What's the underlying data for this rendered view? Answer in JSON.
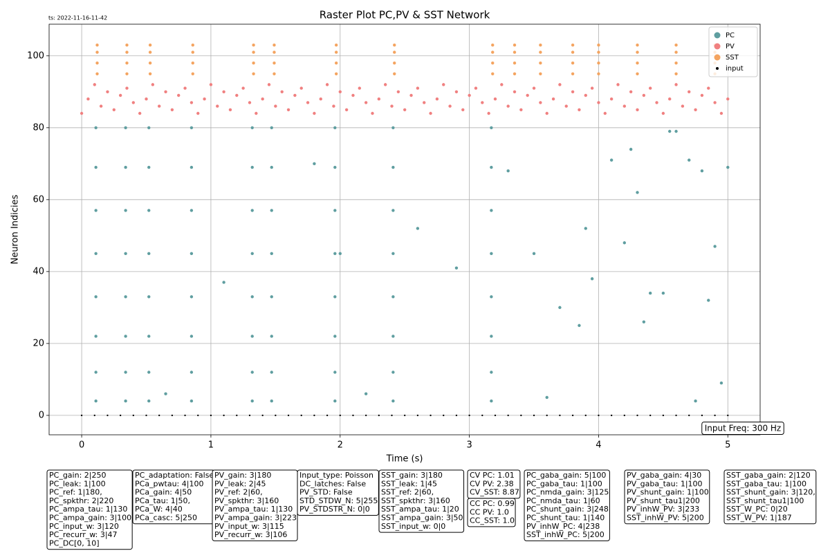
{
  "chart_data": {
    "type": "scatter",
    "timestamp": "ts: 2022-11-16-11-42",
    "title": "Raster Plot PC,PV & SST Network",
    "xlabel": "Time (s)",
    "ylabel": "Neuron Indicies",
    "annotation": "Input Freq: 300 Hz",
    "xlim": [
      -0.252,
      5.25
    ],
    "ylim": [
      -5.4,
      108.8
    ],
    "xticks": [
      0,
      1,
      2,
      3,
      4,
      5
    ],
    "yticks": [
      0,
      20,
      40,
      60,
      80,
      100
    ],
    "grid": true,
    "legend": "upper right",
    "series": [
      {
        "name": "PC",
        "color": "#5f9ea0",
        "x": [
          0.11,
          0.11,
          0.11,
          0.11,
          0.11,
          0.11,
          0.11,
          0.11,
          0.34,
          0.34,
          0.34,
          0.34,
          0.34,
          0.34,
          0.34,
          0.34,
          0.52,
          0.52,
          0.52,
          0.52,
          0.52,
          0.52,
          0.52,
          0.52,
          0.85,
          0.85,
          0.85,
          0.85,
          0.85,
          0.85,
          0.85,
          0.85,
          1.32,
          1.32,
          1.32,
          1.32,
          1.32,
          1.32,
          1.32,
          1.32,
          1.47,
          1.47,
          1.47,
          1.47,
          1.47,
          1.47,
          1.47,
          1.47,
          1.96,
          1.96,
          1.96,
          1.96,
          1.96,
          1.96,
          1.96,
          1.96,
          2.41,
          2.41,
          2.41,
          2.41,
          2.41,
          2.41,
          2.41,
          2.41,
          3.17,
          3.17,
          3.17,
          3.17,
          3.17,
          3.17,
          3.17,
          3.17,
          3.3,
          3.5,
          3.6,
          3.7,
          3.85,
          3.9,
          3.95,
          4.1,
          4.2,
          4.3,
          4.4,
          4.5,
          4.6,
          4.7,
          4.8,
          4.9,
          5.0,
          4.55,
          4.25,
          4.85,
          4.95,
          4.75,
          4.35,
          2.2,
          2.6,
          2.9,
          1.8,
          1.1,
          0.65,
          2.0
        ],
        "values": [
          4,
          12,
          22,
          33,
          45,
          57,
          69,
          80,
          4,
          12,
          22,
          33,
          45,
          57,
          69,
          80,
          4,
          12,
          22,
          33,
          45,
          57,
          69,
          80,
          4,
          12,
          22,
          33,
          45,
          57,
          69,
          80,
          4,
          12,
          22,
          33,
          45,
          57,
          69,
          80,
          4,
          12,
          22,
          33,
          45,
          57,
          69,
          80,
          4,
          12,
          22,
          33,
          45,
          57,
          69,
          80,
          4,
          12,
          22,
          33,
          45,
          57,
          69,
          80,
          4,
          12,
          22,
          33,
          45,
          57,
          69,
          80,
          68,
          45,
          5,
          30,
          25,
          52,
          38,
          71,
          48,
          62,
          34,
          34,
          79,
          71,
          68,
          47,
          69,
          79,
          74,
          32,
          9,
          4,
          26,
          6,
          52,
          41,
          70,
          37,
          6,
          45
        ]
      },
      {
        "name": "PV",
        "color": "#f08080",
        "x": [
          0.0,
          0.05,
          0.1,
          0.15,
          0.2,
          0.25,
          0.3,
          0.35,
          0.4,
          0.45,
          0.5,
          0.55,
          0.6,
          0.65,
          0.7,
          0.75,
          0.8,
          0.85,
          0.9,
          0.95,
          1.0,
          1.05,
          1.1,
          1.15,
          1.2,
          1.25,
          1.3,
          1.35,
          1.4,
          1.45,
          1.5,
          1.55,
          1.6,
          1.65,
          1.7,
          1.75,
          1.8,
          1.85,
          1.9,
          1.95,
          2.0,
          2.05,
          2.1,
          2.15,
          2.2,
          2.25,
          2.3,
          2.35,
          2.4,
          2.45,
          2.5,
          2.55,
          2.6,
          2.65,
          2.7,
          2.75,
          2.8,
          2.85,
          2.9,
          2.95,
          3.0,
          3.05,
          3.1,
          3.15,
          3.2,
          3.25,
          3.3,
          3.35,
          3.4,
          3.45,
          3.5,
          3.55,
          3.6,
          3.65,
          3.7,
          3.75,
          3.8,
          3.85,
          3.9,
          3.95,
          4.0,
          4.05,
          4.1,
          4.15,
          4.2,
          4.25,
          4.3,
          4.35,
          4.4,
          4.45,
          4.5,
          4.55,
          4.6,
          4.65,
          4.7,
          4.75,
          4.8,
          4.85,
          4.9,
          4.95,
          5.0
        ],
        "values": [
          84,
          88,
          92,
          86,
          90,
          85,
          89,
          91,
          87,
          84,
          88,
          92,
          86,
          90,
          85,
          89,
          91,
          87,
          84,
          88,
          92,
          86,
          90,
          85,
          89,
          91,
          87,
          84,
          88,
          92,
          86,
          90,
          85,
          89,
          91,
          87,
          84,
          88,
          92,
          86,
          90,
          85,
          89,
          91,
          87,
          84,
          88,
          92,
          86,
          90,
          85,
          89,
          91,
          87,
          84,
          88,
          92,
          86,
          90,
          85,
          89,
          91,
          87,
          84,
          88,
          92,
          86,
          90,
          85,
          89,
          91,
          87,
          84,
          88,
          92,
          86,
          90,
          85,
          89,
          91,
          87,
          84,
          88,
          92,
          86,
          90,
          85,
          89,
          91,
          87,
          84,
          88,
          92,
          86,
          90,
          85,
          89,
          91,
          87,
          84,
          88
        ]
      },
      {
        "name": "SST",
        "color": "#f4a460",
        "x": [
          0.12,
          0.12,
          0.12,
          0.12,
          0.35,
          0.35,
          0.35,
          0.35,
          0.53,
          0.53,
          0.53,
          0.53,
          0.86,
          0.86,
          0.86,
          0.86,
          1.33,
          1.33,
          1.33,
          1.33,
          1.49,
          1.49,
          1.49,
          1.49,
          1.97,
          1.97,
          1.97,
          1.97,
          2.42,
          2.42,
          2.42,
          2.42,
          3.18,
          3.18,
          3.18,
          3.18,
          3.35,
          3.35,
          3.35,
          3.35,
          3.55,
          3.55,
          3.55,
          3.55,
          3.8,
          3.8,
          3.8,
          3.8,
          4.0,
          4.0,
          4.0,
          4.0,
          4.3,
          4.3,
          4.3,
          4.3,
          4.6,
          4.6,
          4.6,
          4.6,
          4.9,
          4.9,
          4.9,
          4.9
        ],
        "values": [
          95,
          98,
          101,
          103,
          95,
          98,
          101,
          103,
          95,
          98,
          101,
          103,
          95,
          98,
          101,
          103,
          95,
          98,
          101,
          103,
          95,
          98,
          101,
          103,
          95,
          98,
          101,
          103,
          95,
          98,
          101,
          103,
          95,
          98,
          101,
          103,
          95,
          98,
          101,
          103,
          95,
          98,
          101,
          103,
          95,
          98,
          101,
          103,
          95,
          98,
          101,
          103,
          95,
          98,
          101,
          103,
          95,
          98,
          101,
          103,
          95,
          98,
          101,
          103
        ]
      },
      {
        "name": "input",
        "color": "#000000",
        "x": [
          0.0,
          0.1,
          0.2,
          0.3,
          0.4,
          0.5,
          0.6,
          0.7,
          0.8,
          0.9,
          1.0,
          1.1,
          1.2,
          1.3,
          1.4,
          1.5,
          1.6,
          1.7,
          1.8,
          1.9,
          2.0,
          2.1,
          2.2,
          2.3,
          2.4,
          2.5,
          2.6,
          2.7,
          2.8,
          2.9,
          3.0,
          3.1,
          3.2,
          3.3,
          3.4,
          3.5,
          3.6,
          3.7,
          3.8,
          3.9,
          4.0,
          4.1,
          4.2,
          4.3,
          4.4,
          4.5,
          4.6,
          4.7,
          4.8,
          4.9,
          5.0
        ],
        "values": [
          0,
          0,
          0,
          0,
          0,
          0,
          0,
          0,
          0,
          0,
          0,
          0,
          0,
          0,
          0,
          0,
          0,
          0,
          0,
          0,
          0,
          0,
          0,
          0,
          0,
          0,
          0,
          0,
          0,
          0,
          0,
          0,
          0,
          0,
          0,
          0,
          0,
          0,
          0,
          0,
          0,
          0,
          0,
          0,
          0,
          0,
          0,
          0,
          0,
          0,
          0
        ]
      }
    ],
    "param_boxes": [
      [
        "PC_gain: 2|250",
        "PC_leak: 1|100",
        "PC_ref: 1|180,",
        "PC_spkthr: 2|220",
        "PC_ampa_tau: 1|130",
        "PC_ampa_gain: 3|100",
        "PC_input_w: 3|120",
        "PC_recurr_w: 3|47",
        "PC_DC[0, 10]"
      ],
      [
        "PC_adaptation: False",
        "PCa_pwtau: 4|100",
        "PCa_gain: 4|50",
        "PCa_tau: 1|50,",
        "PCa_W: 4|40",
        "PCa_casc: 5|250"
      ],
      [
        "PV_gain: 3|180",
        "PV_leak: 2|45",
        "PV_ref: 2|60,",
        "PV_spkthr: 3|160",
        "PV_ampa_tau: 1|130",
        "PV_ampa_gain: 3|223",
        "PV_input_w: 3|115",
        "PV_recurr_w: 3|106"
      ],
      [
        "Input_type: Poisson",
        "DC_latches: False",
        "PV_STD: False",
        "STD_STDW_N: 5|255",
        "PV_STDSTR_N: 0|0"
      ],
      [
        "SST_gain: 3|180",
        "SST_leak: 1|45",
        "SST_ref: 2|60,",
        "SST_spkthr: 3|160",
        "SST_ampa_tau: 1|20",
        "SST_ampa_gain: 3|50",
        "SST_input_w: 0|0"
      ],
      [
        "CV PC: 1.01",
        "CV PV: 2.38",
        "CV_SST: 8.87"
      ],
      [
        "CC PC: 0.99",
        "CC PV: 1.0",
        "CC_SST: 1.0"
      ],
      [
        "PC_gaba_gain: 5|100",
        "PC_gaba_tau: 1|100",
        "PC_nmda_gain: 3|125",
        "PC_nmda_tau: 1|60",
        "PC_shunt_gain: 3|248",
        "PC_shunt_tau: 1|140",
        "PV_inhW_PC: 4|238",
        "SST_inhW_PC: 5|200"
      ],
      [
        "PV_gaba_gain: 4|30",
        "PV_gaba_tau: 1|100",
        "PV_shunt_gain: 1|100",
        "PV_shunt_tau1|200",
        "PV_inhW_PV: 3|233",
        "SST_inhW_PV: 5|200"
      ],
      [
        "SST_gaba_gain: 2|120",
        "SST_gaba_tau: 1|100",
        "SST_shunt_gain: 3|120,",
        "SST_shunt_tau1|100",
        "SST_W_PC: 0|20",
        "SST_W_PV: 1|187"
      ]
    ]
  }
}
